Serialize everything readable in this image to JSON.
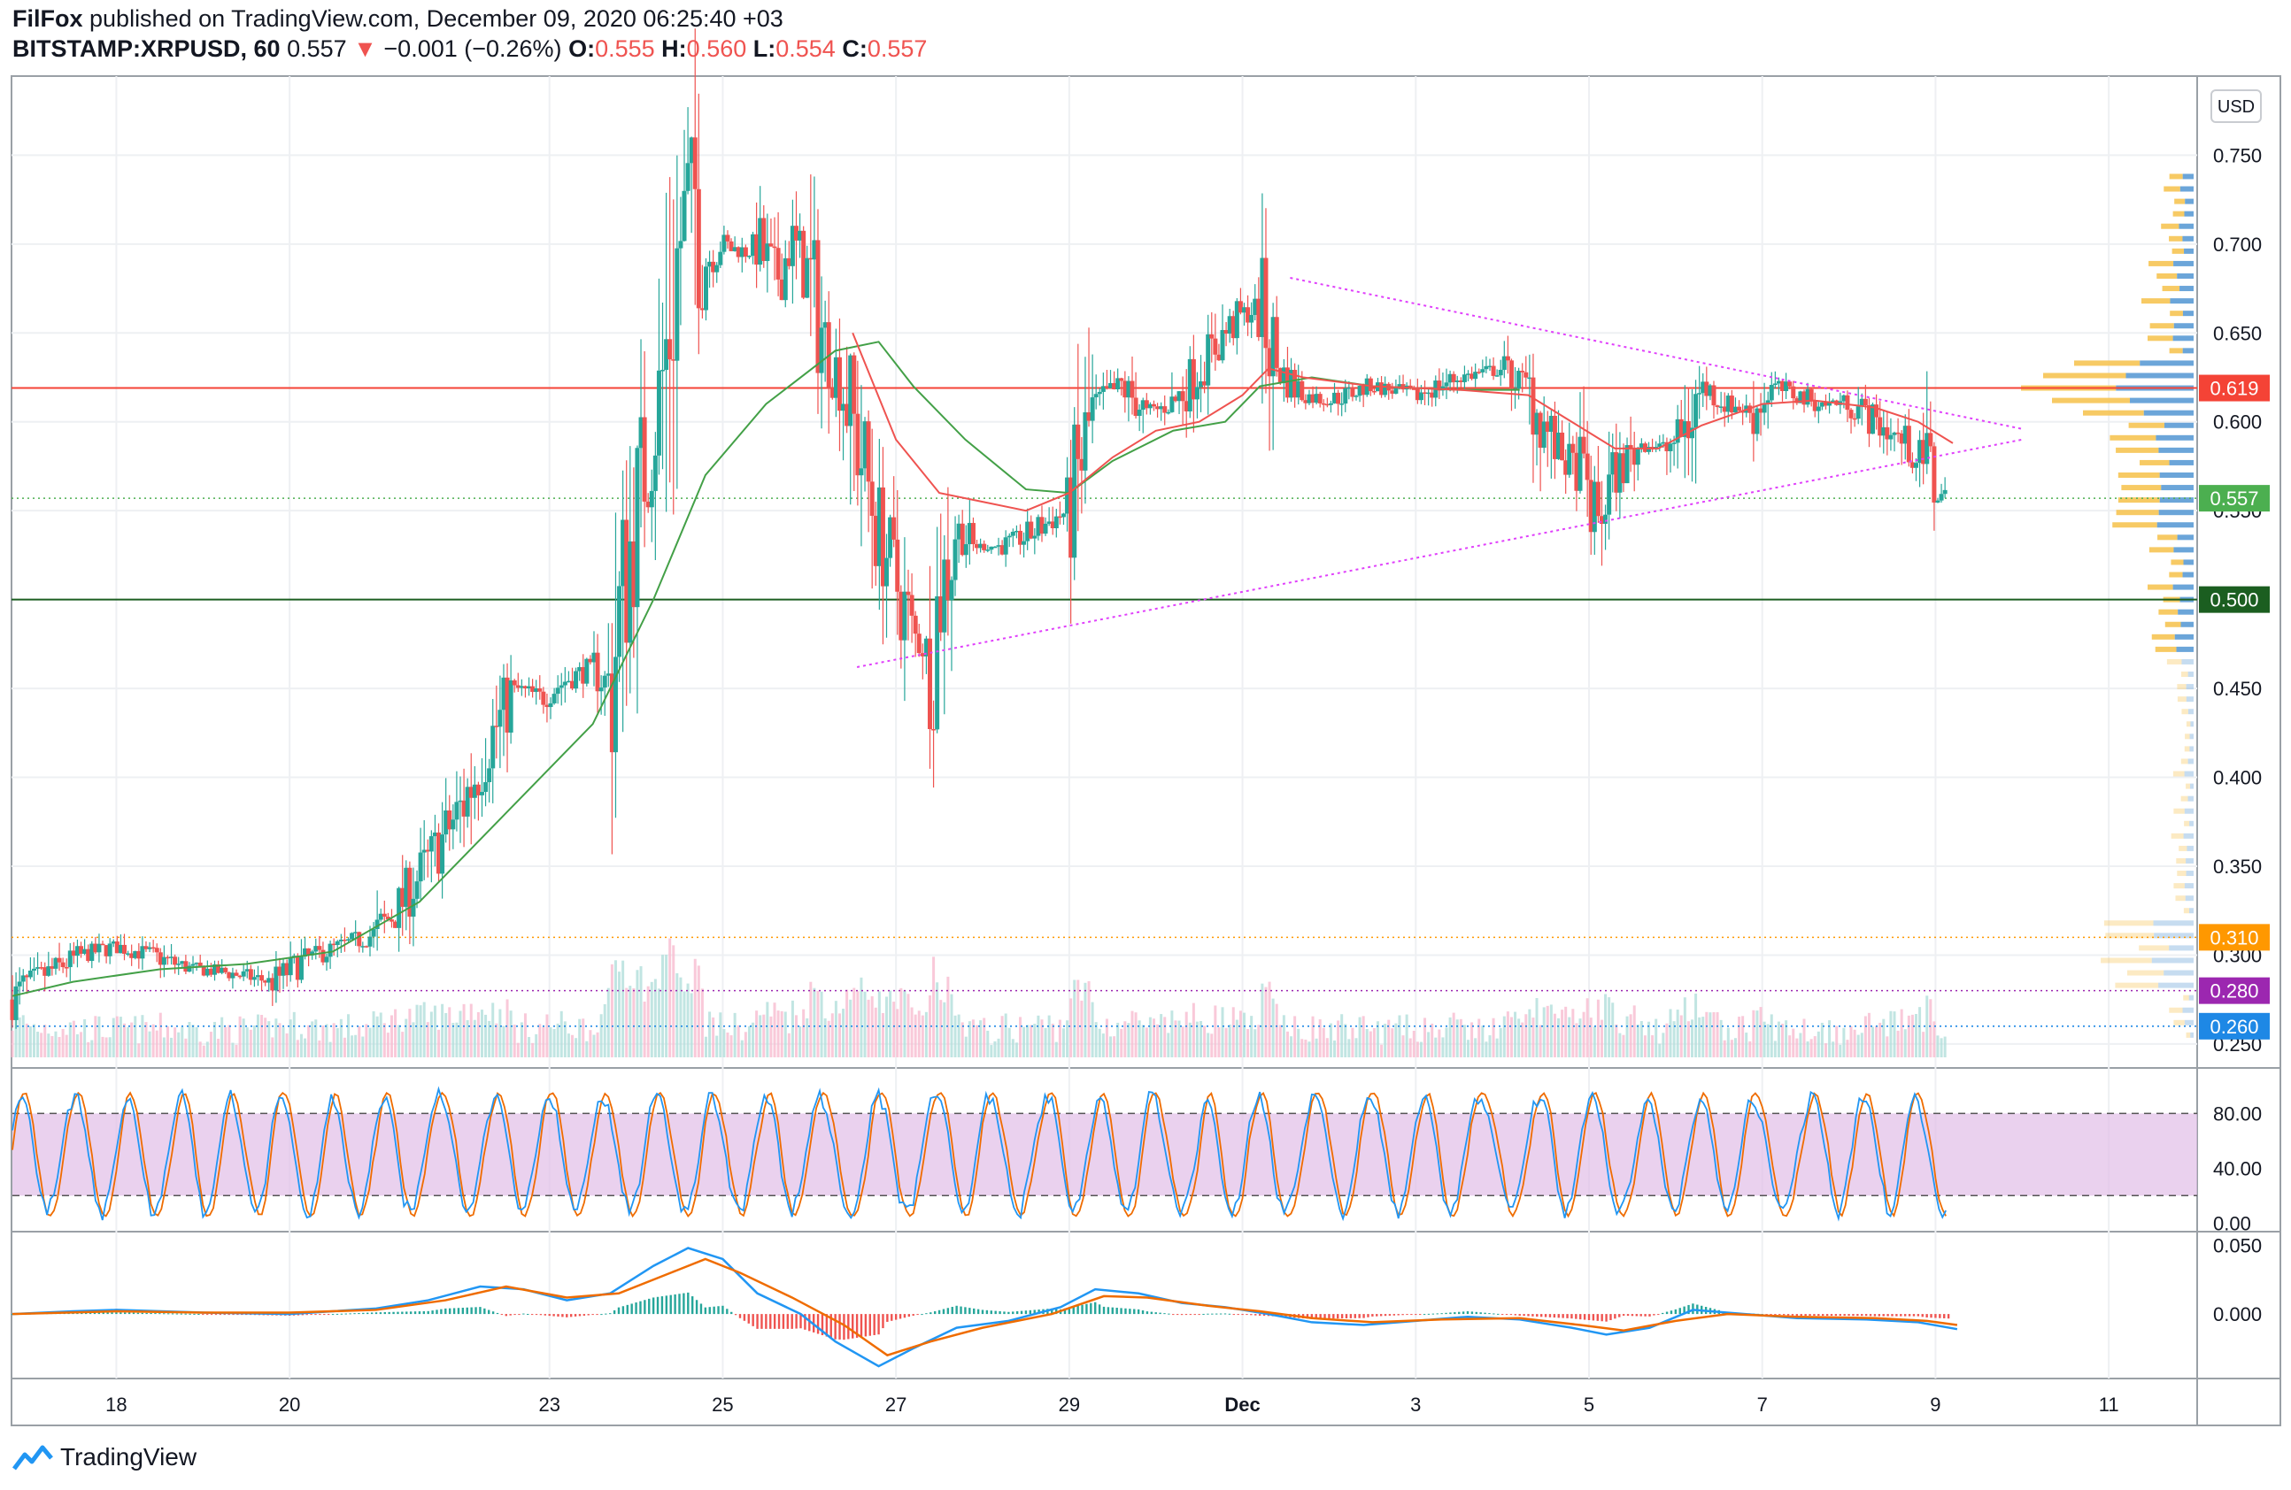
{
  "header": {
    "publisher": "FilFox",
    "published_text": "published on TradingView.com, December 09, 2020 06:25:40 +03",
    "symbol": "BITSTAMP:XRPUSD, 60",
    "last": "0.557",
    "change": "−0.001 (−0.26%)",
    "o_label": "O:",
    "o": "0.555",
    "h_label": "H:",
    "h": "0.560",
    "l_label": "L:",
    "l": "0.554",
    "c_label": "C:",
    "c": "0.557"
  },
  "footer": {
    "brand": "TradingView"
  },
  "currency_button": "USD",
  "chart_data": [
    {
      "type": "candlestick",
      "name": "price",
      "ylim": [
        0.24,
        0.79
      ],
      "yticks": [
        "0.750",
        "0.700",
        "0.650",
        "0.600",
        "0.550",
        "0.450",
        "0.400",
        "0.350",
        "0.300",
        "0.250"
      ],
      "ytick_values": [
        0.75,
        0.7,
        0.65,
        0.6,
        0.55,
        0.45,
        0.4,
        0.35,
        0.3,
        0.25
      ],
      "x_days": [
        16.8,
        28.0,
        42.0
      ],
      "xtick_labels": [
        "18",
        "20",
        "23",
        "25",
        "27",
        "29",
        "Dec",
        "3",
        "5",
        "7",
        "9",
        "11"
      ],
      "xtick_days": [
        18,
        20,
        23,
        25,
        27,
        29,
        31,
        33,
        35,
        37,
        39,
        41
      ],
      "close_series": [
        [
          16.8,
          0.275
        ],
        [
          17.0,
          0.285
        ],
        [
          17.6,
          0.3
        ],
        [
          18.0,
          0.305
        ],
        [
          18.4,
          0.3
        ],
        [
          18.8,
          0.293
        ],
        [
          19.3,
          0.29
        ],
        [
          19.8,
          0.285
        ],
        [
          20.2,
          0.298
        ],
        [
          20.6,
          0.305
        ],
        [
          21.0,
          0.312
        ],
        [
          21.3,
          0.33
        ],
        [
          21.7,
          0.36
        ],
        [
          22.0,
          0.385
        ],
        [
          22.3,
          0.42
        ],
        [
          22.6,
          0.45
        ],
        [
          22.9,
          0.445
        ],
        [
          23.2,
          0.455
        ],
        [
          23.5,
          0.462
        ],
        [
          23.7,
          0.45
        ],
        [
          23.9,
          0.52
        ],
        [
          24.1,
          0.575
        ],
        [
          24.3,
          0.62
        ],
        [
          24.5,
          0.7
        ],
        [
          24.65,
          0.735
        ],
        [
          24.8,
          0.69
        ],
        [
          25.0,
          0.7
        ],
        [
          25.2,
          0.695
        ],
        [
          25.4,
          0.7
        ],
        [
          25.6,
          0.68
        ],
        [
          25.8,
          0.7
        ],
        [
          26.0,
          0.68
        ],
        [
          26.2,
          0.64
        ],
        [
          26.4,
          0.62
        ],
        [
          26.6,
          0.58
        ],
        [
          26.8,
          0.54
        ],
        [
          27.0,
          0.51
        ],
        [
          27.2,
          0.48
        ],
        [
          27.4,
          0.47
        ],
        [
          27.5,
          0.5
        ],
        [
          27.7,
          0.54
        ],
        [
          27.9,
          0.53
        ],
        [
          28.2,
          0.53
        ],
        [
          28.5,
          0.535
        ],
        [
          28.8,
          0.545
        ],
        [
          29.0,
          0.55
        ],
        [
          29.3,
          0.61
        ],
        [
          29.6,
          0.62
        ],
        [
          29.9,
          0.605
        ],
        [
          30.2,
          0.61
        ],
        [
          30.5,
          0.63
        ],
        [
          30.8,
          0.65
        ],
        [
          31.0,
          0.66
        ],
        [
          31.2,
          0.665
        ],
        [
          31.4,
          0.63
        ],
        [
          31.7,
          0.615
        ],
        [
          32.0,
          0.612
        ],
        [
          32.5,
          0.62
        ],
        [
          33.0,
          0.615
        ],
        [
          33.5,
          0.625
        ],
        [
          34.0,
          0.63
        ],
        [
          34.3,
          0.618
        ],
        [
          34.6,
          0.585
        ],
        [
          34.9,
          0.57
        ],
        [
          35.1,
          0.545
        ],
        [
          35.3,
          0.57
        ],
        [
          35.6,
          0.588
        ],
        [
          35.9,
          0.585
        ],
        [
          36.1,
          0.595
        ],
        [
          36.3,
          0.62
        ],
        [
          36.6,
          0.61
        ],
        [
          36.9,
          0.605
        ],
        [
          37.1,
          0.62
        ],
        [
          37.4,
          0.615
        ],
        [
          37.7,
          0.61
        ],
        [
          38.0,
          0.612
        ],
        [
          38.3,
          0.6
        ],
        [
          38.6,
          0.59
        ],
        [
          38.9,
          0.575
        ],
        [
          39.0,
          0.56
        ],
        [
          39.15,
          0.557
        ]
      ],
      "ma_fast": [
        [
          26.5,
          0.65
        ],
        [
          27.0,
          0.59
        ],
        [
          27.5,
          0.56
        ],
        [
          28.0,
          0.555
        ],
        [
          28.5,
          0.55
        ],
        [
          29.0,
          0.56
        ],
        [
          29.5,
          0.58
        ],
        [
          30.0,
          0.595
        ],
        [
          30.5,
          0.6
        ],
        [
          31.0,
          0.615
        ],
        [
          31.3,
          0.63
        ],
        [
          31.7,
          0.625
        ],
        [
          32.5,
          0.62
        ],
        [
          33.5,
          0.618
        ],
        [
          34.3,
          0.615
        ],
        [
          34.8,
          0.6
        ],
        [
          35.3,
          0.585
        ],
        [
          35.8,
          0.585
        ],
        [
          36.3,
          0.598
        ],
        [
          37.0,
          0.61
        ],
        [
          37.6,
          0.612
        ],
        [
          38.3,
          0.608
        ],
        [
          38.8,
          0.6
        ],
        [
          39.2,
          0.588
        ]
      ],
      "ma_slow": [
        [
          16.8,
          0.277
        ],
        [
          17.5,
          0.285
        ],
        [
          18.5,
          0.292
        ],
        [
          19.5,
          0.295
        ],
        [
          20.5,
          0.302
        ],
        [
          21.5,
          0.33
        ],
        [
          22.5,
          0.38
        ],
        [
          23.5,
          0.43
        ],
        [
          24.2,
          0.5
        ],
        [
          24.8,
          0.57
        ],
        [
          25.5,
          0.61
        ],
        [
          26.3,
          0.64
        ],
        [
          26.8,
          0.645
        ],
        [
          27.2,
          0.62
        ],
        [
          27.8,
          0.59
        ],
        [
          28.5,
          0.562
        ],
        [
          29.0,
          0.56
        ],
        [
          29.5,
          0.578
        ],
        [
          30.2,
          0.595
        ],
        [
          30.8,
          0.6
        ],
        [
          31.2,
          0.62
        ],
        [
          31.8,
          0.625
        ],
        [
          32.5,
          0.62
        ],
        [
          33.5,
          0.618
        ],
        [
          34.2,
          0.618
        ]
      ],
      "price_lines": [
        {
          "label": "0.619",
          "value": 0.619,
          "color": "#f44336",
          "style": "solid"
        },
        {
          "label": "0.500",
          "value": 0.5,
          "color": "#1b5e20",
          "style": "solid"
        },
        {
          "label": "0.557",
          "value": 0.557,
          "color": "#4caf50",
          "style": "dotted"
        },
        {
          "label": "0.310",
          "value": 0.31,
          "color": "#ff9800",
          "style": "dotted"
        },
        {
          "label": "0.280",
          "value": 0.28,
          "color": "#9c27b0",
          "style": "dotted"
        },
        {
          "label": "0.260",
          "value": 0.26,
          "color": "#1e88e5",
          "style": "dotted"
        }
      ],
      "trendlines": [
        {
          "from": [
            31.55,
            0.681
          ],
          "to": [
            40.0,
            0.596
          ],
          "color": "#e040fb"
        },
        {
          "from": [
            26.55,
            0.462
          ],
          "to": [
            40.0,
            0.59
          ],
          "color": "#e040fb"
        }
      ],
      "colors": {
        "up": "#26a69a",
        "down": "#ef5350",
        "ma_fast": "#ef5350",
        "ma_slow": "#43a047"
      }
    },
    {
      "type": "line",
      "name": "stochastic",
      "ylim": [
        -5,
        110
      ],
      "yticks": [
        "80.00",
        "40.00",
        "0.00"
      ],
      "ytick_values": [
        80,
        40,
        0
      ],
      "band": [
        20,
        80
      ],
      "colors": {
        "k": "#2196f3",
        "d": "#ef6c00",
        "band": "#e1bee7"
      }
    },
    {
      "type": "line",
      "name": "macd",
      "ylim": [
        -0.045,
        0.058
      ],
      "yticks": [
        "0.050",
        "0.000"
      ],
      "ytick_values": [
        0.05,
        0.0
      ],
      "macd": [
        [
          16.8,
          0.0
        ],
        [
          17.5,
          0.002
        ],
        [
          18.0,
          0.003
        ],
        [
          19.0,
          0.001
        ],
        [
          20.0,
          0.0
        ],
        [
          21.0,
          0.004
        ],
        [
          21.6,
          0.01
        ],
        [
          22.2,
          0.02
        ],
        [
          22.7,
          0.018
        ],
        [
          23.2,
          0.01
        ],
        [
          23.7,
          0.015
        ],
        [
          24.2,
          0.035
        ],
        [
          24.6,
          0.048
        ],
        [
          25.0,
          0.04
        ],
        [
          25.4,
          0.015
        ],
        [
          25.9,
          0.0
        ],
        [
          26.3,
          -0.02
        ],
        [
          26.8,
          -0.038
        ],
        [
          27.2,
          -0.025
        ],
        [
          27.7,
          -0.01
        ],
        [
          28.3,
          -0.005
        ],
        [
          28.9,
          0.005
        ],
        [
          29.3,
          0.018
        ],
        [
          29.8,
          0.015
        ],
        [
          30.3,
          0.008
        ],
        [
          30.8,
          0.005
        ],
        [
          31.3,
          0.0
        ],
        [
          31.8,
          -0.006
        ],
        [
          32.4,
          -0.008
        ],
        [
          33.0,
          -0.005
        ],
        [
          33.6,
          -0.002
        ],
        [
          34.2,
          -0.004
        ],
        [
          34.8,
          -0.01
        ],
        [
          35.2,
          -0.015
        ],
        [
          35.7,
          -0.01
        ],
        [
          36.2,
          0.003
        ],
        [
          36.8,
          0.0
        ],
        [
          37.4,
          -0.003
        ],
        [
          38.2,
          -0.004
        ],
        [
          38.8,
          -0.006
        ],
        [
          39.25,
          -0.011
        ]
      ],
      "signal": [
        [
          16.8,
          0.0
        ],
        [
          18.0,
          0.002
        ],
        [
          19.0,
          0.001
        ],
        [
          20.0,
          0.001
        ],
        [
          21.0,
          0.003
        ],
        [
          21.8,
          0.01
        ],
        [
          22.5,
          0.02
        ],
        [
          23.2,
          0.012
        ],
        [
          23.8,
          0.015
        ],
        [
          24.4,
          0.03
        ],
        [
          24.8,
          0.04
        ],
        [
          25.2,
          0.03
        ],
        [
          25.8,
          0.012
        ],
        [
          26.4,
          -0.008
        ],
        [
          26.9,
          -0.03
        ],
        [
          27.4,
          -0.02
        ],
        [
          28.0,
          -0.01
        ],
        [
          28.8,
          0.0
        ],
        [
          29.4,
          0.013
        ],
        [
          29.9,
          0.012
        ],
        [
          30.6,
          0.006
        ],
        [
          31.2,
          0.002
        ],
        [
          31.8,
          -0.003
        ],
        [
          32.5,
          -0.006
        ],
        [
          33.3,
          -0.004
        ],
        [
          34.2,
          -0.003
        ],
        [
          34.9,
          -0.008
        ],
        [
          35.4,
          -0.012
        ],
        [
          36.0,
          -0.005
        ],
        [
          36.6,
          0.0
        ],
        [
          37.4,
          -0.002
        ],
        [
          38.3,
          -0.003
        ],
        [
          38.9,
          -0.005
        ],
        [
          39.25,
          -0.008
        ]
      ],
      "colors": {
        "macd": "#2196f3",
        "signal": "#ef6c00",
        "hist_up": "#26a69a",
        "hist_down": "#ef5350"
      }
    }
  ]
}
